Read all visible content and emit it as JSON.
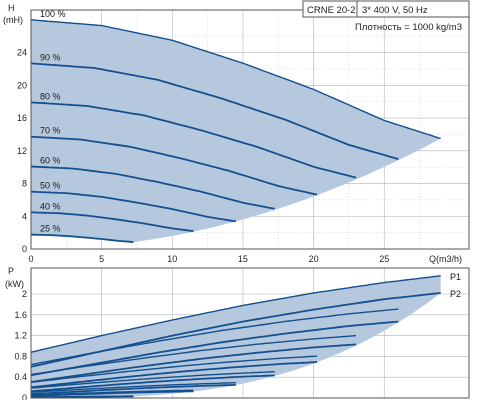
{
  "header": {
    "model": "CRNE 20-2",
    "power_spec": "3* 400 V, 50 Hz",
    "density": "Плотность = 1000 kg/m3"
  },
  "colors": {
    "curve": "#14508f",
    "fill": "#b6c8dd",
    "grid": "#aeb6bf",
    "hatch": "#e8eef5"
  },
  "chart_data": [
    {
      "type": "line",
      "ylabel": "H",
      "yunit": "(mH)",
      "xlabel": "Q(m3/h)",
      "xlim": [
        0,
        31
      ],
      "ylim": [
        0,
        29.2
      ],
      "xticks": [
        0,
        5,
        10,
        15,
        20,
        25
      ],
      "yticks": [
        0,
        4,
        8,
        12,
        16,
        20,
        24
      ],
      "grid": true,
      "series": [
        {
          "name": "100 %",
          "speed": 1.0
        },
        {
          "name": "90 %",
          "speed": 0.9
        },
        {
          "name": "80 %",
          "speed": 0.8
        },
        {
          "name": "70 %",
          "speed": 0.7
        },
        {
          "name": "60 %",
          "speed": 0.6
        },
        {
          "name": "50 %",
          "speed": 0.5
        },
        {
          "name": "40 %",
          "speed": 0.4
        },
        {
          "name": "25 %",
          "speed": 0.25
        }
      ],
      "head_curve_100": {
        "x": [
          0,
          5,
          10,
          15,
          20,
          25,
          29
        ],
        "y": [
          28.0,
          27.3,
          25.5,
          22.7,
          19.5,
          15.7,
          13.5
        ]
      },
      "max_flow_100": 29
    },
    {
      "type": "line",
      "ylabel": "P",
      "yunit": "(kW)",
      "xlim": [
        0,
        31
      ],
      "ylim": [
        0,
        2.5
      ],
      "yticks": [
        0,
        0.4,
        0.8,
        1.2,
        1.6,
        2
      ],
      "grid": true,
      "series": [
        {
          "name": "P1",
          "x": [
            0,
            5,
            10,
            15,
            20,
            25,
            29
          ],
          "y": [
            0.88,
            1.2,
            1.5,
            1.78,
            2.02,
            2.22,
            2.35
          ]
        },
        {
          "name": "P2",
          "x": [
            0,
            5,
            10,
            15,
            20,
            25,
            29
          ],
          "y": [
            0.6,
            0.9,
            1.2,
            1.47,
            1.7,
            1.9,
            2.02
          ]
        }
      ]
    }
  ]
}
